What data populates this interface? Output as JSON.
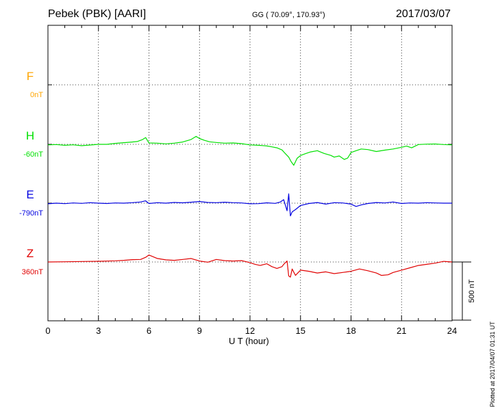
{
  "header": {
    "title": "Pebek (PBK)  [AARI]",
    "coordinates": "GG ( 70.09°, 170.93°)",
    "date": "2017/03/07"
  },
  "footer": {
    "plotted": "Plotted at 2017/04/07 01:31  UT"
  },
  "chart_data": {
    "type": "line",
    "title": "Pebek (PBK)  [AARI]",
    "subtitle": "GG ( 70.09°, 170.93°)",
    "date": "2017/03/07",
    "xlabel": "U T (hour)",
    "xlim": [
      0,
      24
    ],
    "xticks": [
      0,
      3,
      6,
      9,
      12,
      15,
      18,
      21,
      24
    ],
    "grid": true,
    "scale_bar_label": "500 nT",
    "scale_bar_nT": 500,
    "series": [
      {
        "name": "F",
        "offset_label": "0nT",
        "color": "#ffa500",
        "x": [],
        "y": []
      },
      {
        "name": "H",
        "offset_label": "-60nT",
        "color": "#00e000",
        "x": [
          0,
          0.5,
          1,
          1.5,
          2,
          2.5,
          3,
          3.5,
          4,
          4.5,
          5,
          5.3,
          5.6,
          5.8,
          6,
          6.5,
          7,
          7.5,
          8,
          8.5,
          8.8,
          9,
          9.3,
          9.6,
          10,
          10.5,
          11,
          11.5,
          12,
          12.5,
          13,
          13.3,
          13.6,
          13.9,
          14.1,
          14.3,
          14.45,
          14.6,
          14.8,
          15,
          15.3,
          15.6,
          16,
          16.4,
          16.8,
          17,
          17.3,
          17.6,
          17.8,
          18,
          18.3,
          18.6,
          19,
          19.5,
          20,
          20.5,
          21,
          21.3,
          21.6,
          22,
          22.5,
          23,
          23.5,
          24
        ],
        "y": [
          -5,
          -2,
          -8,
          -4,
          -12,
          -6,
          0,
          0,
          8,
          14,
          20,
          24,
          40,
          58,
          12,
          10,
          4,
          10,
          20,
          42,
          68,
          50,
          34,
          22,
          16,
          10,
          12,
          6,
          -5,
          -8,
          -14,
          -22,
          -30,
          -48,
          -80,
          -110,
          -150,
          -180,
          -120,
          -96,
          -80,
          -65,
          -55,
          -78,
          -95,
          -110,
          -100,
          -130,
          -118,
          -70,
          -55,
          -40,
          -45,
          -62,
          -50,
          -40,
          -25,
          -15,
          -30,
          -2,
          2,
          3,
          -2,
          -5
        ]
      },
      {
        "name": "E",
        "offset_label": "-790nT",
        "color": "#0000e0",
        "x": [
          0,
          0.5,
          1,
          1.5,
          2,
          2.5,
          3,
          3.5,
          4,
          4.5,
          5,
          5.5,
          5.8,
          6,
          6.5,
          7,
          7.5,
          8,
          8.5,
          9,
          9.5,
          10,
          10.5,
          11,
          11.5,
          12,
          12.5,
          13,
          13.5,
          13.8,
          14,
          14.2,
          14.3,
          14.4,
          14.5,
          14.7,
          15,
          15.5,
          16,
          16.5,
          17,
          17.5,
          18,
          18.3,
          18.6,
          19,
          19.5,
          20,
          20.5,
          21,
          21.5,
          22,
          22.5,
          23,
          23.5,
          24
        ],
        "y": [
          -5,
          0,
          -4,
          2,
          -2,
          4,
          0,
          -3,
          2,
          0,
          4,
          10,
          20,
          -3,
          4,
          0,
          6,
          3,
          8,
          14,
          6,
          4,
          8,
          4,
          2,
          -5,
          -4,
          3,
          -2,
          10,
          30,
          -65,
          80,
          -110,
          -75,
          -55,
          -20,
          -3,
          5,
          -8,
          4,
          2,
          -8,
          -28,
          -15,
          -3,
          5,
          2,
          10,
          -3,
          2,
          0,
          4,
          2,
          0,
          0
        ]
      },
      {
        "name": "Z",
        "offset_label": "360nT",
        "color": "#e00000",
        "x": [
          0,
          1,
          2,
          3,
          4,
          4.5,
          5,
          5.5,
          5.8,
          6,
          6.5,
          7,
          7.5,
          8,
          8.5,
          9,
          9.5,
          10,
          10.5,
          11,
          11.5,
          12,
          12.3,
          12.6,
          13,
          13.3,
          13.6,
          13.9,
          14,
          14.2,
          14.3,
          14.4,
          14.5,
          14.7,
          15,
          15.5,
          16,
          16.5,
          17,
          17.5,
          18,
          18.5,
          19,
          19.5,
          19.8,
          20.2,
          20.5,
          21,
          21.5,
          22,
          22.5,
          23,
          23.5,
          24
        ],
        "y": [
          0,
          2,
          4,
          6,
          10,
          14,
          20,
          22,
          40,
          60,
          30,
          18,
          14,
          22,
          30,
          8,
          -2,
          22,
          12,
          8,
          12,
          -5,
          -20,
          -30,
          -15,
          -40,
          -55,
          -40,
          -20,
          8,
          -120,
          -130,
          -60,
          -115,
          -70,
          -80,
          -95,
          -85,
          -100,
          -90,
          -80,
          -60,
          -75,
          -95,
          -115,
          -110,
          -90,
          -70,
          -50,
          -30,
          -20,
          -10,
          5,
          0
        ]
      }
    ]
  }
}
